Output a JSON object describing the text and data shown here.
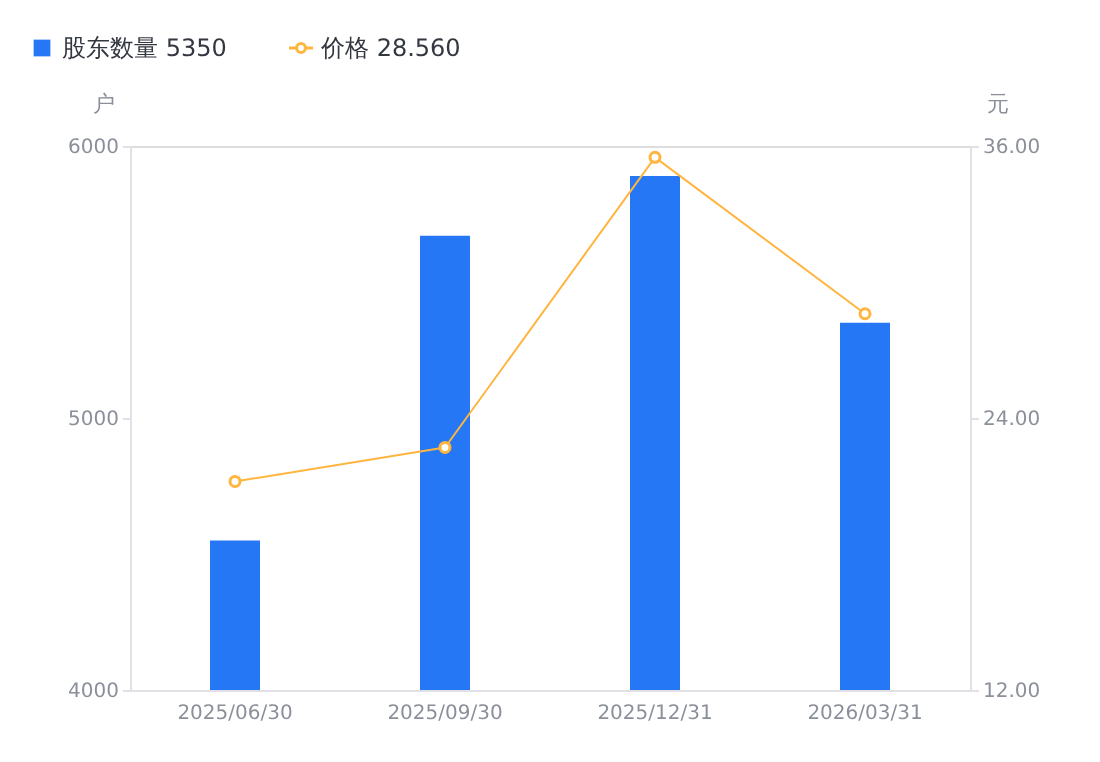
{
  "chart_data": {
    "type": "bar",
    "categories": [
      "2025/06/30",
      "2025/09/30",
      "2025/12/31",
      "2026/03/31"
    ],
    "series": [
      {
        "name": "股东数量 5350",
        "color": "#2577f5",
        "values": [
          4550,
          5670,
          5890,
          5350
        ]
      },
      {
        "name": "价格 28.560",
        "type": "line",
        "axis": "y2",
        "color": "#ffb53f",
        "values": [
          21.2,
          22.7,
          35.5,
          28.6
        ]
      }
    ],
    "ylabel": "户",
    "y2label": "元",
    "ylim": [
      4000,
      6000
    ],
    "yticks": [
      4000,
      5000,
      6000
    ],
    "y2lim": [
      12,
      36
    ],
    "y2ticks": [
      {
        "value": 12,
        "label": "12.00"
      },
      {
        "value": 24,
        "label": "24.00"
      },
      {
        "value": 36,
        "label": "36.00"
      }
    ],
    "marker": "circle",
    "grid": false,
    "legend": "top left"
  }
}
